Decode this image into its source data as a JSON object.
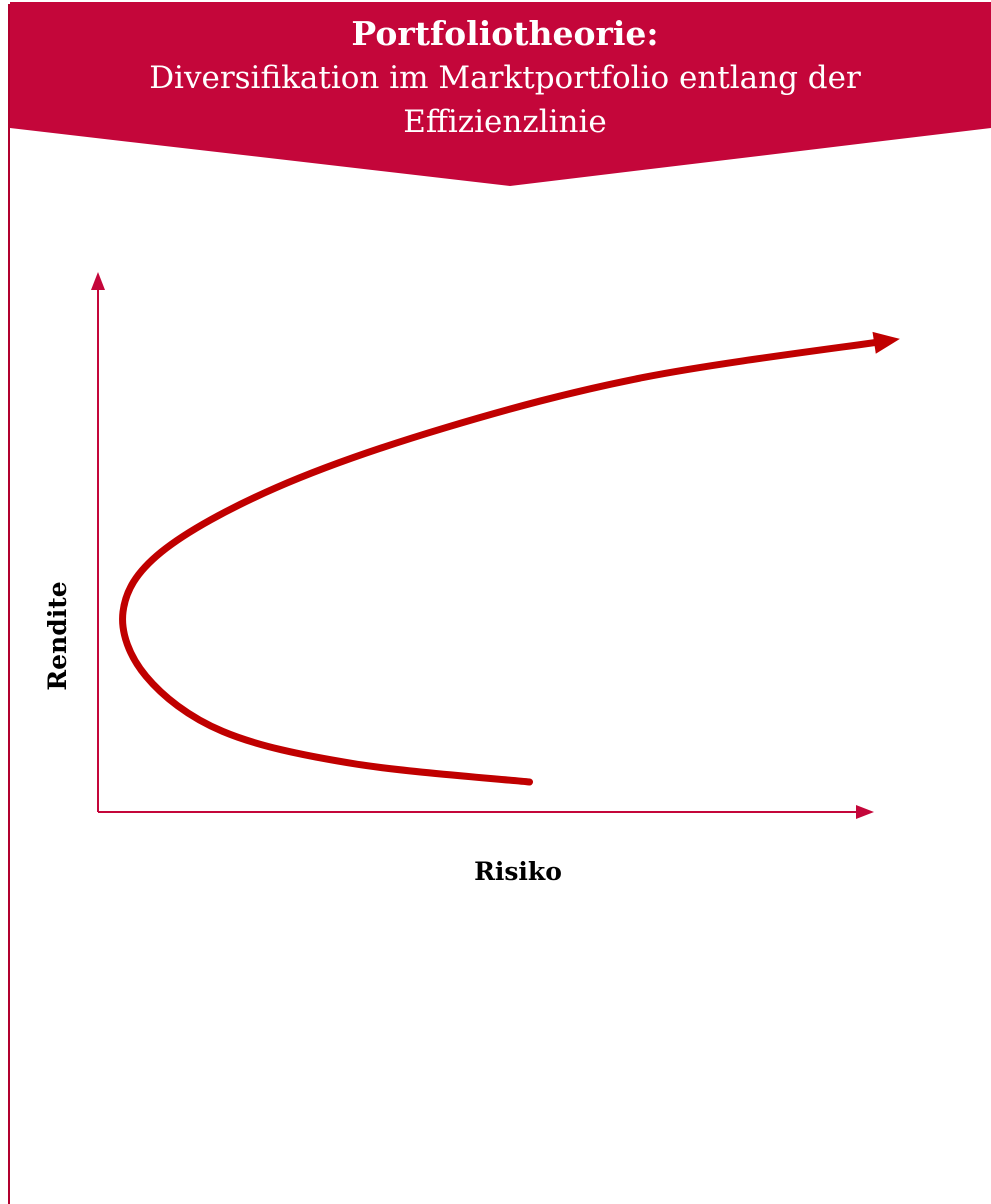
{
  "banner": {
    "title": "Portfoliotheorie:",
    "subtitle": "Diversifikation im Marktportfolio entlang der Effizienzlinie"
  },
  "colors": {
    "banner": "#c4063a",
    "axis": "#c4063a",
    "curve": "#c00000"
  },
  "chart_data": {
    "type": "line",
    "xlabel": "Risiko",
    "ylabel": "Rendite",
    "series": [
      {
        "name": "",
        "description_curve": "efficient frontier",
        "x": [
          0.53,
          0.3,
          0.13,
          0.03,
          0.0,
          0.05,
          0.2,
          0.42,
          0.68,
          1.0
        ],
        "y": [
          0.0,
          0.04,
          0.11,
          0.23,
          0.37,
          0.5,
          0.64,
          0.77,
          0.88,
          0.96
        ]
      }
    ]
  }
}
